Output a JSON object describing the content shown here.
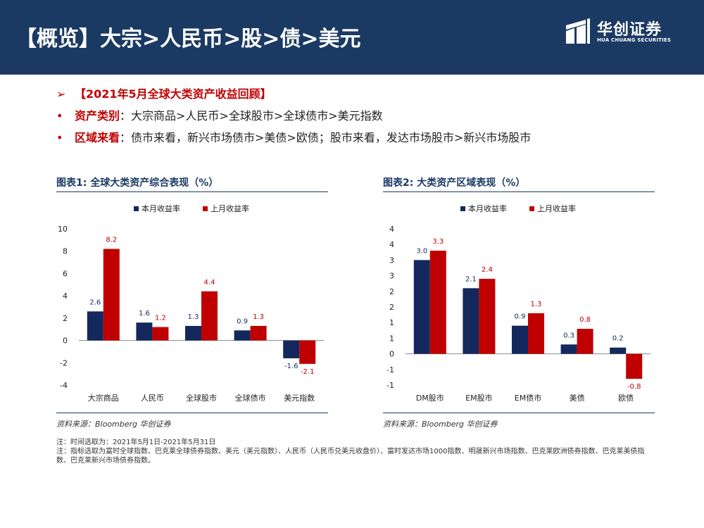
{
  "header": {
    "title": "【概览】大宗>人民币>股>债>美元",
    "logo_cn": "华创证券",
    "logo_en": "HUA CHUANG SECURITIES"
  },
  "bullets": {
    "line1": {
      "mark": "➢",
      "text": "【2021年5月全球大类资产收益回顾】"
    },
    "line2": {
      "mark": "•",
      "head": "资产类别",
      "text": "：大宗商品>人民币>全球股市>全球债市>美元指数"
    },
    "line3": {
      "mark": "•",
      "head": "区域来看",
      "text": "：债市来看，新兴市场债市>美债>欧债；股市来看，发达市场股市>新兴市场股市"
    }
  },
  "chart1": {
    "heading": "图表1:   全球大类资产综合表现（%）",
    "source": "资料来源：Bloomberg 华创证券"
  },
  "chart2": {
    "heading": "图表2:   大类资产区域表现（%）",
    "source": "资料来源：Bloomberg 华创证券"
  },
  "notes": {
    "line1": "注：时间选取为：2021年5月1日-2021年5月31日",
    "line2": "注：指标选取为富时全球指数、巴克莱全球债券指数、美元（美元指数）、人民币（人民币兑美元收盘价）、富时发达市场1000指数、明晟新兴市场指数、巴克莱欧洲债券指数、巴克莱美债指数、巴克莱新兴市场债券指数。"
  },
  "colors": {
    "navy": "#1b3a63",
    "this_month": "#14285e",
    "last_month": "#c00000"
  },
  "chart_data": [
    {
      "type": "bar",
      "categories": [
        "大宗商品",
        "人民币",
        "全球股市",
        "全球债市",
        "美元指数"
      ],
      "series": [
        {
          "name": "本月收益率",
          "values": [
            2.6,
            1.6,
            1.3,
            0.9,
            -1.6
          ]
        },
        {
          "name": "上月收益率",
          "values": [
            8.2,
            1.2,
            4.4,
            1.3,
            -2.1
          ]
        }
      ],
      "ylim": [
        -4,
        10
      ],
      "yticks": [
        "-4",
        "-2",
        "0",
        "2",
        "4",
        "6",
        "8",
        "10"
      ],
      "legend": "top"
    },
    {
      "type": "bar",
      "categories": [
        "DM股市",
        "EM股市",
        "EM债市",
        "美债",
        "欧债"
      ],
      "series": [
        {
          "name": "本月收益率",
          "values": [
            3.0,
            2.1,
            0.9,
            0.3,
            0.2
          ]
        },
        {
          "name": "上月收益率",
          "values": [
            3.3,
            2.4,
            1.3,
            0.8,
            -0.8
          ]
        }
      ],
      "ylim": [
        -1,
        4
      ],
      "yticks": [
        "-1",
        "-1",
        "0",
        "1",
        "1",
        "2",
        "2",
        "3",
        "3",
        "4",
        "4"
      ],
      "labels": [
        [
          "3.0",
          "2.1",
          "0.9",
          "0.3",
          "0.2"
        ],
        [
          "3.3",
          "2.4",
          "1.3",
          "0.8",
          "-0.8"
        ]
      ],
      "legend": "top"
    }
  ]
}
